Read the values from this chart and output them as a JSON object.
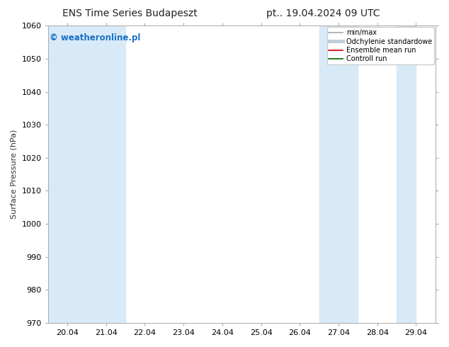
{
  "title_left": "ENS Time Series Budapeszt",
  "title_right": "pt.. 19.04.2024 09 UTC",
  "ylabel": "Surface Pressure (hPa)",
  "ylim": [
    970,
    1060
  ],
  "yticks": [
    970,
    980,
    990,
    1000,
    1010,
    1020,
    1030,
    1040,
    1050,
    1060
  ],
  "xtick_labels": [
    "20.04",
    "21.04",
    "22.04",
    "23.04",
    "24.04",
    "25.04",
    "26.04",
    "27.04",
    "28.04",
    "29.04"
  ],
  "xtick_positions": [
    0,
    1,
    2,
    3,
    4,
    5,
    6,
    7,
    8,
    9
  ],
  "band_color": "#d8eaf7",
  "band_ranges": [
    [
      0.0,
      2.0
    ],
    [
      7.0,
      8.0
    ],
    [
      9.0,
      9.5
    ]
  ],
  "watermark_text": "© weatheronline.pl",
  "watermark_color": "#1a6fc4",
  "background_color": "#ffffff",
  "plot_bg_color": "#ffffff",
  "legend_items": [
    {
      "label": "min/max",
      "color": "#a0aab0",
      "lw": 1.2,
      "style": "-"
    },
    {
      "label": "Odchylenie standardowe",
      "color": "#c0cdd8",
      "lw": 3.5,
      "style": "-"
    },
    {
      "label": "Ensemble mean run",
      "color": "#cc0000",
      "lw": 1.2,
      "style": "-"
    },
    {
      "label": "Controll run",
      "color": "#006600",
      "lw": 1.2,
      "style": "-"
    }
  ],
  "spine_color": "#aaaaaa",
  "tick_color": "#555555",
  "font_size": 8,
  "title_font_size": 10,
  "watermark_font_size": 8.5
}
